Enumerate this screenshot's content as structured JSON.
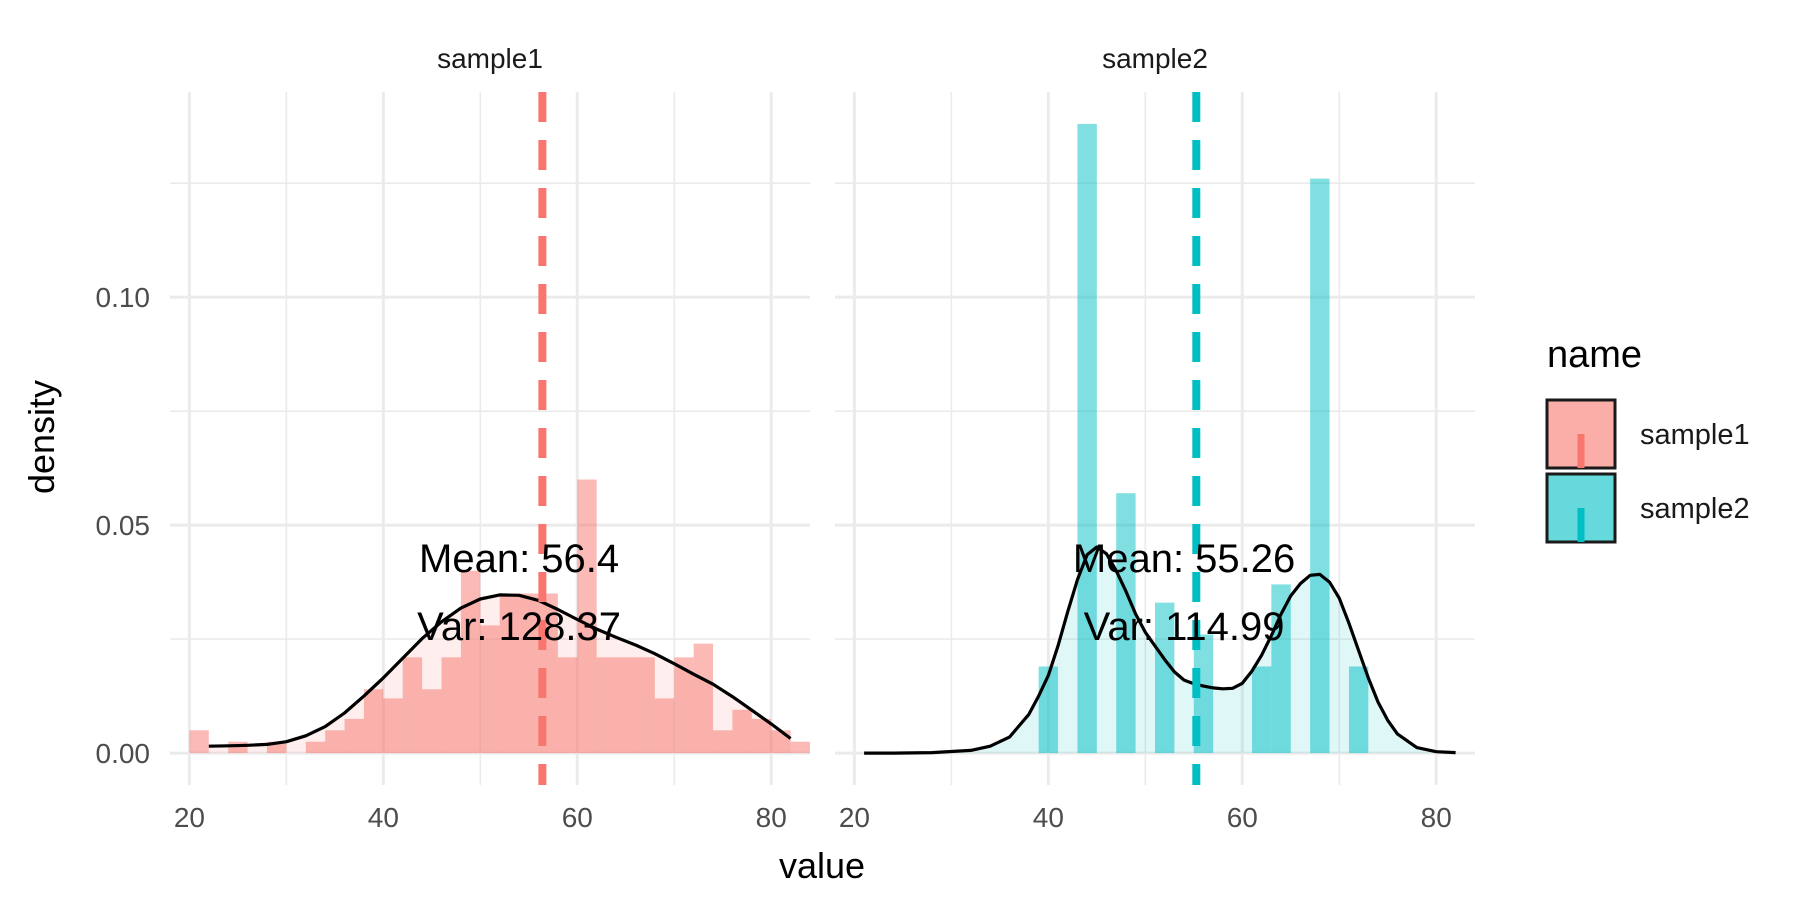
{
  "chart_data": {
    "type": "bar",
    "xlabel": "value",
    "ylabel": "density",
    "xlim": [
      18,
      84
    ],
    "ylim": [
      -0.007,
      0.145
    ],
    "x_ticks": [
      20,
      40,
      60,
      80
    ],
    "x_tick_labels": [
      "20",
      "40",
      "60",
      "80"
    ],
    "y_ticks": [
      0.0,
      0.05,
      0.1
    ],
    "y_tick_labels": [
      "0.00",
      "0.05",
      "0.10"
    ],
    "grid": true,
    "legend": {
      "title": "name",
      "position": "right",
      "entries": [
        {
          "label": "sample1",
          "fill": "#F8766D",
          "line": "#F8766D"
        },
        {
          "label": "sample2",
          "fill": "#00BFC4",
          "line": "#00BFC4"
        }
      ]
    },
    "panels": [
      {
        "strip": "sample1",
        "color": "#F8766D",
        "histogram": {
          "bin_centers": [
            21,
            23,
            25,
            27,
            29,
            31,
            33,
            35,
            37,
            39,
            41,
            43,
            45,
            47,
            49,
            51,
            53,
            55,
            57,
            59,
            61,
            63,
            65,
            67,
            69,
            71,
            73,
            75,
            77,
            79,
            81,
            83
          ],
          "bin_width": 2,
          "values": [
            0.005,
            0,
            0.0025,
            0,
            0.0025,
            0,
            0.0025,
            0.005,
            0.0075,
            0.014,
            0.012,
            0.021,
            0.014,
            0.021,
            0.04,
            0.028,
            0.035,
            0.035,
            0.035,
            0.021,
            0.06,
            0.021,
            0.021,
            0.021,
            0.012,
            0.021,
            0.024,
            0.005,
            0.0095,
            0.0075,
            0.005,
            0.0025
          ]
        },
        "density": {
          "x": [
            22,
            24,
            26,
            28,
            30,
            32,
            34,
            36,
            38,
            40,
            42,
            44,
            46,
            48,
            50,
            52,
            54,
            56,
            58,
            60,
            62,
            64,
            66,
            68,
            70,
            72,
            74,
            76,
            78,
            80,
            82
          ],
          "y": [
            0.0015,
            0.0016,
            0.0017,
            0.0019,
            0.0025,
            0.0038,
            0.0058,
            0.0088,
            0.0125,
            0.0165,
            0.0208,
            0.0251,
            0.0288,
            0.0318,
            0.0338,
            0.0347,
            0.0346,
            0.0335,
            0.0315,
            0.0293,
            0.0272,
            0.0254,
            0.0237,
            0.0218,
            0.0196,
            0.0173,
            0.0151,
            0.0124,
            0.0094,
            0.0064,
            0.0032
          ]
        },
        "mean": 56.4,
        "annotation": {
          "mean_text": "Mean: 56.4",
          "var_text": "Var: 128.37"
        }
      },
      {
        "strip": "sample2",
        "color": "#00BFC4",
        "histogram": {
          "bin_centers": [
            40,
            42,
            44,
            46,
            48,
            50,
            52,
            54,
            56,
            58,
            60,
            62,
            64,
            66,
            68,
            70,
            72
          ],
          "bin_width": 2,
          "values": [
            0.019,
            0,
            0.138,
            0,
            0.057,
            0,
            0.033,
            0,
            0.026,
            0,
            0,
            0.019,
            0.037,
            0,
            0.126,
            0,
            0.019
          ]
        },
        "density": {
          "x": [
            21,
            24,
            28,
            32,
            34,
            36,
            38,
            39,
            40,
            41,
            42,
            43,
            44,
            45,
            46,
            47,
            48,
            49,
            50,
            51,
            52,
            53,
            54,
            55,
            56,
            57,
            58,
            59,
            60,
            61,
            62,
            63,
            64,
            65,
            66,
            67,
            68,
            69,
            70,
            71,
            72,
            73,
            74,
            75,
            76,
            78,
            80,
            82
          ],
          "y": [
            0,
            0,
            0.0001,
            0.0006,
            0.0015,
            0.0035,
            0.0085,
            0.0125,
            0.017,
            0.0235,
            0.031,
            0.038,
            0.0435,
            0.0452,
            0.0437,
            0.04,
            0.0355,
            0.0305,
            0.0265,
            0.0235,
            0.0205,
            0.0178,
            0.016,
            0.0152,
            0.0147,
            0.0143,
            0.0141,
            0.0142,
            0.0153,
            0.018,
            0.0215,
            0.0258,
            0.0305,
            0.0345,
            0.0372,
            0.039,
            0.0392,
            0.0375,
            0.034,
            0.0285,
            0.0225,
            0.0165,
            0.0112,
            0.0072,
            0.0042,
            0.0012,
            0.0003,
            0.0001
          ]
        },
        "mean": 55.26,
        "annotation": {
          "mean_text": "Mean: 55.26",
          "var_text": "Var: 114.99"
        }
      }
    ]
  }
}
